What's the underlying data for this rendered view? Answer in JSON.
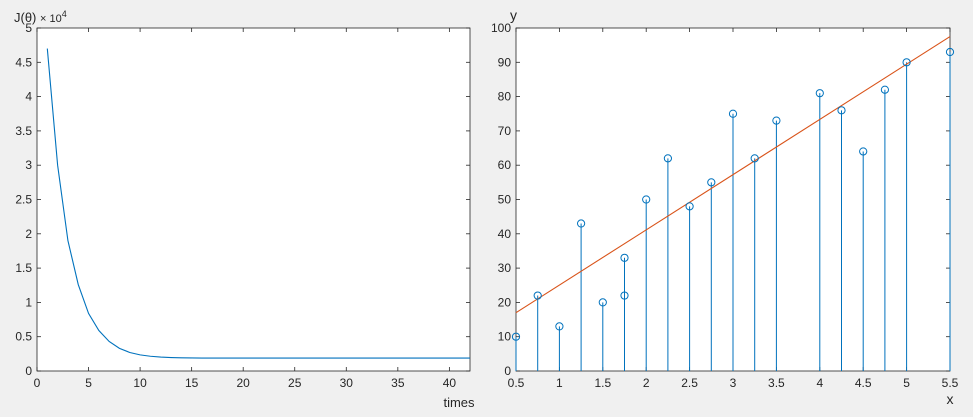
{
  "chart_data": [
    {
      "type": "line",
      "ylabel": "J(θ)",
      "y_exponent_label": "× 10",
      "y_exponent_power": "4",
      "xlabel": "times",
      "xlim": [
        0,
        42
      ],
      "ylim": [
        0,
        50000
      ],
      "x_ticks": [
        0,
        5,
        10,
        15,
        20,
        25,
        30,
        35,
        40
      ],
      "x_tick_labels": [
        "0",
        "5",
        "10",
        "15",
        "20",
        "25",
        "30",
        "35",
        "40"
      ],
      "y_ticks": [
        0,
        5000,
        10000,
        15000,
        20000,
        25000,
        30000,
        35000,
        40000,
        45000,
        50000
      ],
      "y_tick_labels": [
        "0",
        "0.5",
        "1",
        "1.5",
        "2",
        "2.5",
        "3",
        "3.5",
        "4",
        "4.5",
        "5"
      ],
      "grid": false,
      "series": [
        {
          "color": "#0072bd",
          "x": [
            1,
            2,
            3,
            4,
            5,
            6,
            7,
            8,
            9,
            10,
            11,
            12,
            13,
            14,
            15,
            16,
            17,
            18,
            19,
            20,
            21,
            22,
            23,
            24,
            25,
            26,
            27,
            28,
            29,
            30,
            31,
            32,
            33,
            34,
            35,
            36,
            37,
            38,
            39,
            40,
            41,
            42
          ],
          "y": [
            47000,
            30000,
            19000,
            12600,
            8400,
            5900,
            4300,
            3300,
            2700,
            2350,
            2150,
            2030,
            1960,
            1920,
            1900,
            1890,
            1885,
            1880,
            1880,
            1880,
            1880,
            1880,
            1880,
            1880,
            1880,
            1880,
            1880,
            1880,
            1880,
            1880,
            1880,
            1880,
            1880,
            1880,
            1880,
            1880,
            1880,
            1880,
            1880,
            1880,
            1880,
            1880
          ]
        }
      ]
    },
    {
      "type": "scatter",
      "ylabel": "y",
      "xlabel": "x",
      "xlim": [
        0.5,
        5.5
      ],
      "ylim": [
        0,
        100
      ],
      "x_ticks": [
        0.5,
        1,
        1.5,
        2,
        2.5,
        3,
        3.5,
        4,
        4.5,
        5,
        5.5
      ],
      "x_tick_labels": [
        "0.5",
        "1",
        "1.5",
        "2",
        "2.5",
        "3",
        "3.5",
        "4",
        "4.5",
        "5",
        "5.5"
      ],
      "y_ticks": [
        0,
        10,
        20,
        30,
        40,
        50,
        60,
        70,
        80,
        90,
        100
      ],
      "y_tick_labels": [
        "0",
        "10",
        "20",
        "30",
        "40",
        "50",
        "60",
        "70",
        "80",
        "90",
        "100"
      ],
      "grid": false,
      "stems": {
        "color": "#0072bd",
        "x": [
          0.5,
          0.75,
          1.0,
          1.25,
          1.5,
          1.75,
          1.75,
          2.0,
          2.25,
          2.5,
          2.75,
          3.0,
          3.25,
          3.5,
          4.0,
          4.25,
          4.5,
          4.75,
          5.0,
          5.5
        ],
        "y": [
          10,
          22,
          13,
          43,
          20,
          22,
          33,
          50,
          62,
          48,
          55,
          75,
          62,
          73,
          81,
          76,
          64,
          82,
          90,
          93
        ]
      },
      "fit_line": {
        "color": "#d95319",
        "x": [
          0.5,
          5.5
        ],
        "y": [
          17,
          97.5
        ]
      }
    }
  ]
}
